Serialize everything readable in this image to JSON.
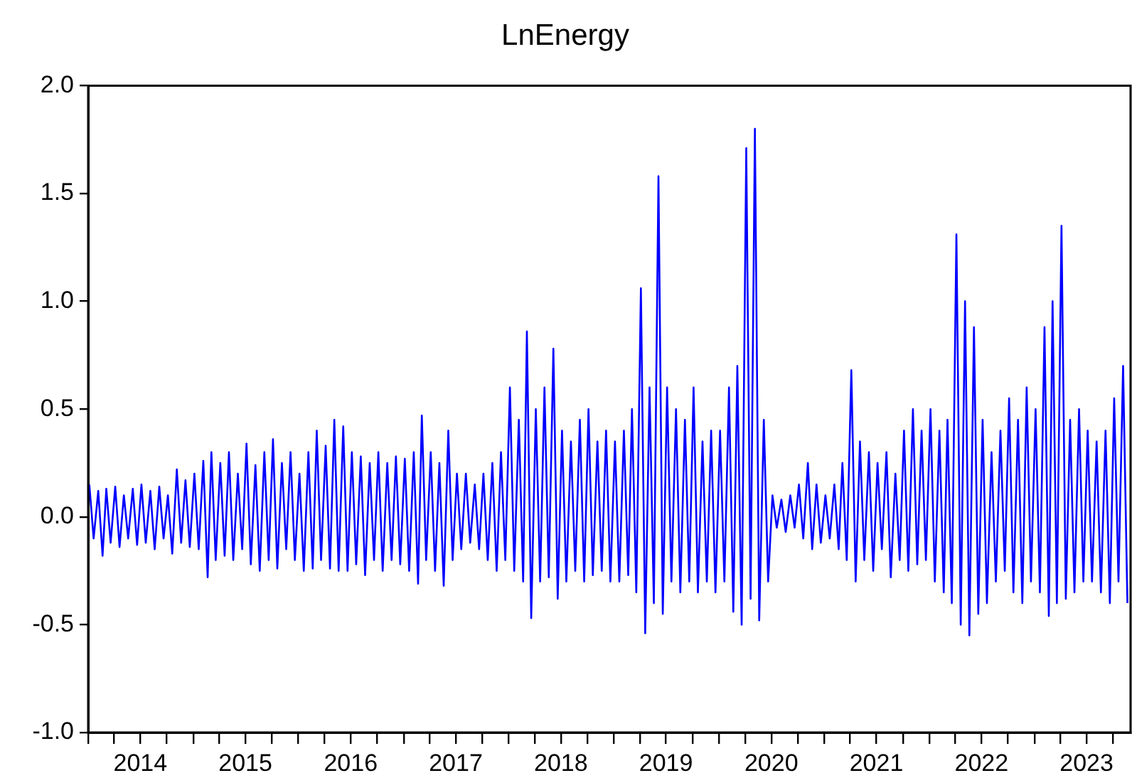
{
  "chart_data": {
    "type": "line",
    "title": "LnEnergy",
    "grid": false,
    "legend": false,
    "marker": "none",
    "line_style": "solid",
    "xlim": [
      "2014-01-01",
      "2023-12-01"
    ],
    "ylim": [
      -1,
      2
    ],
    "yticks": [
      {
        "value": -1,
        "label": "-1.0"
      },
      -0.5,
      {
        "value": 0,
        "label": "0.0"
      },
      0.5,
      {
        "value": 1,
        "label": "1.0"
      },
      1.5,
      {
        "value": 2,
        "label": "2.0"
      }
    ],
    "xticks": [
      {
        "value": "2014-01-01",
        "label": null
      },
      {
        "value": "2014-04-01",
        "label": null
      },
      {
        "value": "2014-07-01",
        "label": "2014"
      },
      {
        "value": "2014-10-01",
        "label": null
      },
      {
        "value": "2015-01-01",
        "label": null
      },
      {
        "value": "2015-04-01",
        "label": null
      },
      {
        "value": "2015-07-01",
        "label": "2015"
      },
      {
        "value": "2015-10-01",
        "label": null
      },
      {
        "value": "2016-01-01",
        "label": null
      },
      {
        "value": "2016-04-01",
        "label": null
      },
      {
        "value": "2016-07-01",
        "label": "2016"
      },
      {
        "value": "2016-10-01",
        "label": null
      },
      {
        "value": "2017-01-01",
        "label": null
      },
      {
        "value": "2017-04-01",
        "label": null
      },
      {
        "value": "2017-07-01",
        "label": "2017"
      },
      {
        "value": "2017-10-01",
        "label": null
      },
      {
        "value": "2018-01-01",
        "label": null
      },
      {
        "value": "2018-04-01",
        "label": null
      },
      {
        "value": "2018-07-01",
        "label": "2018"
      },
      {
        "value": "2018-10-01",
        "label": null
      },
      {
        "value": "2019-01-01",
        "label": null
      },
      {
        "value": "2019-04-01",
        "label": null
      },
      {
        "value": "2019-07-01",
        "label": "2019"
      },
      {
        "value": "2019-10-01",
        "label": null
      },
      {
        "value": "2020-01-01",
        "label": null
      },
      {
        "value": "2020-04-01",
        "label": null
      },
      {
        "value": "2020-07-01",
        "label": "2020"
      },
      {
        "value": "2020-10-01",
        "label": null
      },
      {
        "value": "2021-01-01",
        "label": null
      },
      {
        "value": "2021-04-01",
        "label": null
      },
      {
        "value": "2021-07-01",
        "label": "2021"
      },
      {
        "value": "2021-10-01",
        "label": null
      },
      {
        "value": "2022-01-01",
        "label": null
      },
      {
        "value": "2022-04-01",
        "label": null
      },
      {
        "value": "2022-07-01",
        "label": "2022"
      },
      {
        "value": "2022-10-01",
        "label": null
      },
      {
        "value": "2023-01-01",
        "label": null
      },
      {
        "value": "2023-04-01",
        "label": null
      },
      {
        "value": "2023-07-01",
        "label": "2023"
      },
      {
        "value": "2023-10-01",
        "label": null
      }
    ],
    "series": [
      {
        "color": "#0000ff",
        "x": [
          "2014-01-05",
          "2014-01-20",
          "2014-02-05",
          "2014-02-20",
          "2014-03-05",
          "2014-03-20",
          "2014-04-05",
          "2014-04-20",
          "2014-05-05",
          "2014-05-20",
          "2014-06-05",
          "2014-06-20",
          "2014-07-05",
          "2014-07-20",
          "2014-08-05",
          "2014-08-20",
          "2014-09-05",
          "2014-09-20",
          "2014-10-05",
          "2014-10-20",
          "2014-11-05",
          "2014-11-20",
          "2014-12-05",
          "2014-12-20",
          "2015-01-05",
          "2015-01-20",
          "2015-02-05",
          "2015-02-20",
          "2015-03-05",
          "2015-03-20",
          "2015-04-05",
          "2015-04-20",
          "2015-05-05",
          "2015-05-20",
          "2015-06-05",
          "2015-06-20",
          "2015-07-05",
          "2015-07-20",
          "2015-08-05",
          "2015-08-20",
          "2015-09-05",
          "2015-09-20",
          "2015-10-05",
          "2015-10-20",
          "2015-11-05",
          "2015-11-20",
          "2015-12-05",
          "2015-12-20",
          "2016-01-05",
          "2016-01-20",
          "2016-02-05",
          "2016-02-20",
          "2016-03-05",
          "2016-03-20",
          "2016-04-05",
          "2016-04-20",
          "2016-05-05",
          "2016-05-20",
          "2016-06-05",
          "2016-06-20",
          "2016-07-05",
          "2016-07-20",
          "2016-08-05",
          "2016-08-20",
          "2016-09-05",
          "2016-09-20",
          "2016-10-05",
          "2016-10-20",
          "2016-11-05",
          "2016-11-20",
          "2016-12-05",
          "2016-12-20",
          "2017-01-05",
          "2017-01-20",
          "2017-02-05",
          "2017-02-20",
          "2017-03-05",
          "2017-03-20",
          "2017-04-05",
          "2017-04-20",
          "2017-05-05",
          "2017-05-20",
          "2017-06-05",
          "2017-06-20",
          "2017-07-05",
          "2017-07-20",
          "2017-08-05",
          "2017-08-20",
          "2017-09-05",
          "2017-09-20",
          "2017-10-05",
          "2017-10-20",
          "2017-11-05",
          "2017-11-20",
          "2017-12-05",
          "2017-12-20",
          "2018-01-05",
          "2018-01-20",
          "2018-02-05",
          "2018-02-20",
          "2018-03-05",
          "2018-03-20",
          "2018-04-05",
          "2018-04-20",
          "2018-05-05",
          "2018-05-20",
          "2018-06-05",
          "2018-06-20",
          "2018-07-05",
          "2018-07-20",
          "2018-08-05",
          "2018-08-20",
          "2018-09-05",
          "2018-09-20",
          "2018-10-05",
          "2018-10-20",
          "2018-11-05",
          "2018-11-20",
          "2018-12-05",
          "2018-12-20",
          "2019-01-05",
          "2019-01-20",
          "2019-02-05",
          "2019-02-20",
          "2019-03-05",
          "2019-03-20",
          "2019-04-05",
          "2019-04-20",
          "2019-05-05",
          "2019-05-20",
          "2019-06-05",
          "2019-06-20",
          "2019-07-05",
          "2019-07-20",
          "2019-08-05",
          "2019-08-20",
          "2019-09-05",
          "2019-09-20",
          "2019-10-05",
          "2019-10-20",
          "2019-11-05",
          "2019-11-20",
          "2019-12-05",
          "2019-12-20",
          "2020-01-05",
          "2020-01-20",
          "2020-02-05",
          "2020-02-20",
          "2020-03-05",
          "2020-03-20",
          "2020-04-05",
          "2020-04-20",
          "2020-05-05",
          "2020-05-20",
          "2020-06-05",
          "2020-06-20",
          "2020-07-05",
          "2020-07-20",
          "2020-08-05",
          "2020-08-20",
          "2020-09-05",
          "2020-09-20",
          "2020-10-05",
          "2020-10-20",
          "2020-11-05",
          "2020-11-20",
          "2020-12-05",
          "2020-12-20",
          "2021-01-05",
          "2021-01-20",
          "2021-02-05",
          "2021-02-20",
          "2021-03-05",
          "2021-03-20",
          "2021-04-05",
          "2021-04-20",
          "2021-05-05",
          "2021-05-20",
          "2021-06-05",
          "2021-06-20",
          "2021-07-05",
          "2021-07-20",
          "2021-08-05",
          "2021-08-20",
          "2021-09-05",
          "2021-09-20",
          "2021-10-05",
          "2021-10-20",
          "2021-11-05",
          "2021-11-20",
          "2021-12-05",
          "2021-12-20",
          "2022-01-05",
          "2022-01-20",
          "2022-02-05",
          "2022-02-20",
          "2022-03-05",
          "2022-03-20",
          "2022-04-05",
          "2022-04-20",
          "2022-05-05",
          "2022-05-20",
          "2022-06-05",
          "2022-06-20",
          "2022-07-05",
          "2022-07-20",
          "2022-08-05",
          "2022-08-20",
          "2022-09-05",
          "2022-09-20",
          "2022-10-05",
          "2022-10-20",
          "2022-11-05",
          "2022-11-20",
          "2022-12-05",
          "2022-12-20",
          "2023-01-05",
          "2023-01-20",
          "2023-02-05",
          "2023-02-20",
          "2023-03-05",
          "2023-03-20",
          "2023-04-05",
          "2023-04-20",
          "2023-05-05",
          "2023-05-20",
          "2023-06-05",
          "2023-06-20",
          "2023-07-05",
          "2023-07-20",
          "2023-08-05",
          "2023-08-20",
          "2023-09-05",
          "2023-09-20",
          "2023-10-05",
          "2023-10-20",
          "2023-11-05",
          "2023-11-20"
        ],
        "values": [
          0.15,
          -0.1,
          0.12,
          -0.18,
          0.13,
          -0.12,
          0.14,
          -0.14,
          0.1,
          -0.1,
          0.13,
          -0.13,
          0.15,
          -0.12,
          0.12,
          -0.15,
          0.14,
          -0.1,
          0.1,
          -0.17,
          0.22,
          -0.12,
          0.17,
          -0.14,
          0.2,
          -0.15,
          0.26,
          -0.28,
          0.3,
          -0.2,
          0.25,
          -0.18,
          0.3,
          -0.2,
          0.2,
          -0.15,
          0.34,
          -0.22,
          0.24,
          -0.25,
          0.3,
          -0.2,
          0.36,
          -0.24,
          0.25,
          -0.15,
          0.3,
          -0.2,
          0.2,
          -0.25,
          0.3,
          -0.24,
          0.4,
          -0.2,
          0.33,
          -0.24,
          0.45,
          -0.25,
          0.42,
          -0.25,
          0.3,
          -0.22,
          0.28,
          -0.27,
          0.25,
          -0.2,
          0.3,
          -0.25,
          0.25,
          -0.2,
          0.28,
          -0.22,
          0.27,
          -0.25,
          0.3,
          -0.31,
          0.47,
          -0.2,
          0.3,
          -0.25,
          0.25,
          -0.32,
          0.4,
          -0.2,
          0.2,
          -0.15,
          0.2,
          -0.12,
          0.15,
          -0.15,
          0.2,
          -0.2,
          0.25,
          -0.25,
          0.3,
          -0.2,
          0.6,
          -0.25,
          0.45,
          -0.3,
          0.86,
          -0.47,
          0.5,
          -0.3,
          0.6,
          -0.28,
          0.78,
          -0.38,
          0.4,
          -0.3,
          0.35,
          -0.25,
          0.45,
          -0.3,
          0.5,
          -0.27,
          0.35,
          -0.25,
          0.4,
          -0.3,
          0.35,
          -0.3,
          0.4,
          -0.27,
          0.5,
          -0.35,
          1.06,
          -0.54,
          0.6,
          -0.4,
          1.58,
          -0.45,
          0.6,
          -0.3,
          0.5,
          -0.35,
          0.45,
          -0.3,
          0.6,
          -0.35,
          0.35,
          -0.3,
          0.4,
          -0.35,
          0.4,
          -0.3,
          0.6,
          -0.44,
          0.7,
          -0.5,
          1.71,
          -0.38,
          1.8,
          -0.48,
          0.45,
          -0.3,
          0.1,
          -0.05,
          0.08,
          -0.07,
          0.1,
          -0.05,
          0.15,
          -0.1,
          0.25,
          -0.15,
          0.15,
          -0.12,
          0.1,
          -0.1,
          0.15,
          -0.15,
          0.25,
          -0.2,
          0.68,
          -0.3,
          0.35,
          -0.2,
          0.3,
          -0.25,
          0.25,
          -0.15,
          0.3,
          -0.28,
          0.2,
          -0.2,
          0.4,
          -0.25,
          0.5,
          -0.22,
          0.4,
          -0.2,
          0.5,
          -0.3,
          0.4,
          -0.35,
          0.45,
          -0.4,
          1.31,
          -0.5,
          1.0,
          -0.55,
          0.88,
          -0.45,
          0.45,
          -0.4,
          0.3,
          -0.3,
          0.4,
          -0.25,
          0.55,
          -0.35,
          0.45,
          -0.4,
          0.6,
          -0.3,
          0.5,
          -0.35,
          0.88,
          -0.46,
          1.0,
          -0.4,
          1.35,
          -0.38,
          0.45,
          -0.35,
          0.5,
          -0.3,
          0.4,
          -0.3,
          0.35,
          -0.35,
          0.4,
          -0.4,
          0.55,
          -0.3,
          0.7,
          -0.4
        ]
      }
    ]
  }
}
